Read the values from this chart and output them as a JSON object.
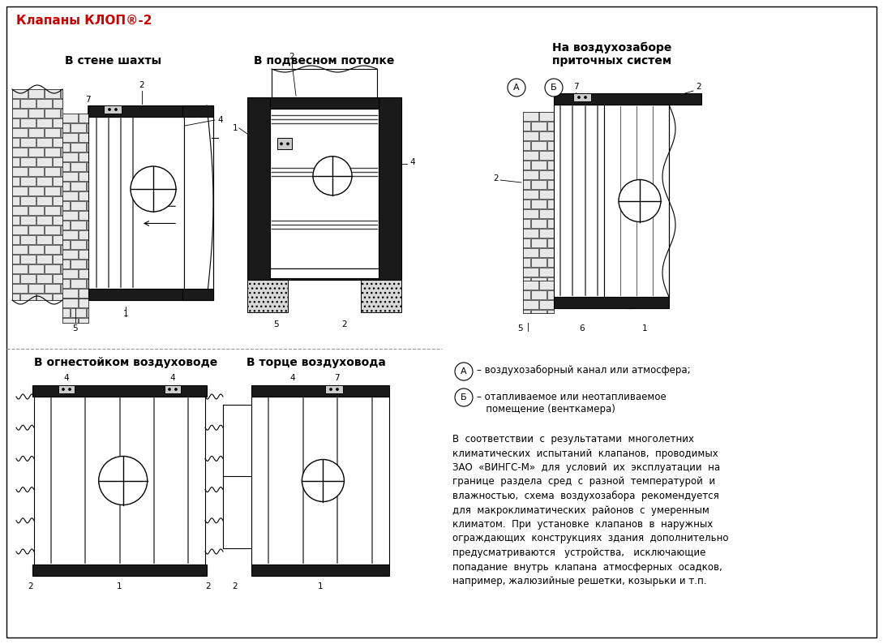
{
  "title": "Клапаны КЛОП®-2",
  "title_color": "#cc0000",
  "bg_color": "#ffffff",
  "label1": "В стене шахты",
  "label2": "В подвесном потолке",
  "label3_1": "На воздухозаборе",
  "label3_2": "приточных систем",
  "label4": "В огнестойком воздуховоде",
  "label5": "В торце воздуховода",
  "legend_A_text": "– воздухозаборный канал или атмосфера;",
  "legend_B_text": "– отапливаемое или неотапливаемое\n   помещение (венткамера)",
  "body_text_lines": [
    "В  соответствии  с  результатами  многолетних",
    "климатических  испытаний  клапанов,  проводимых",
    "ЗАО  «ВИНГС-М»  для  условий  их  эксплуатации  на",
    "границе  раздела  сред  с  разной  температурой  и",
    "влажностью,  схема  воздухозабора  рекомендуется",
    "для  макроклиматических  районов  с  умеренным",
    "климатом.  При  установке  клапанов  в  наружных",
    "ограждающих  конструкциях  здания  дополнительно",
    "предусматриваются   устройства,   исключающие",
    "попадание  внутрь  клапана  атмосферных  осадков,",
    "например, жалюзийные решетки, козырьки и т.п."
  ]
}
